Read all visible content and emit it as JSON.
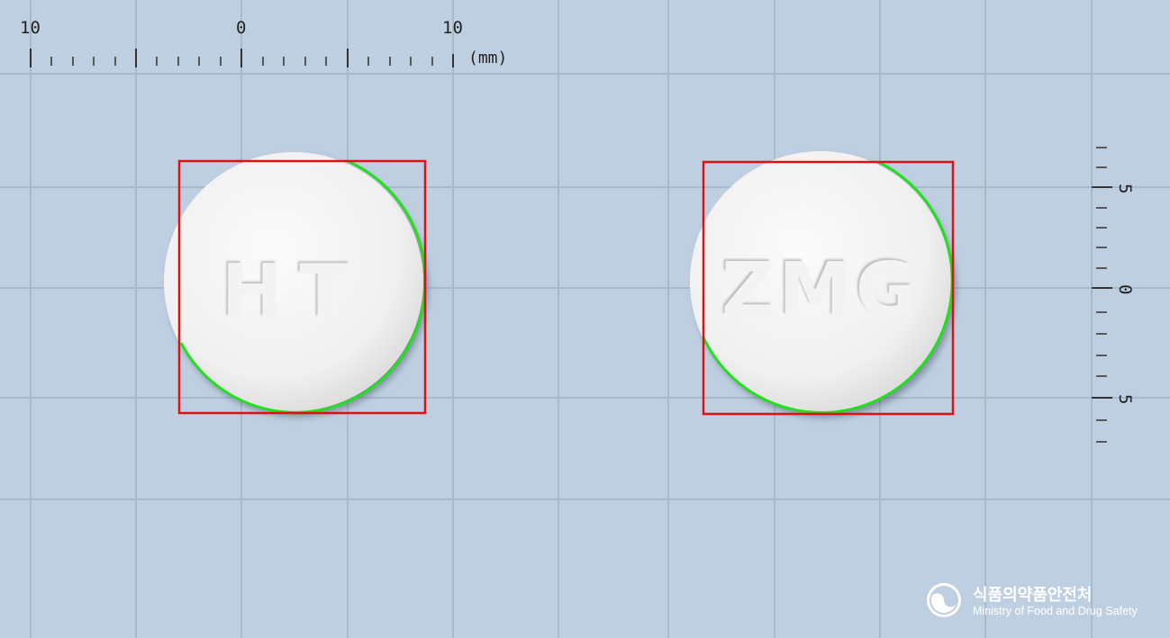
{
  "ruler": {
    "top_labels": [
      "10",
      "0",
      "10"
    ],
    "unit": "(mm)",
    "right_labels": [
      "5",
      "0",
      "5"
    ]
  },
  "pills": [
    {
      "imprint": "HT",
      "color": "#f4f4f4"
    },
    {
      "imprint": "ZMG",
      "color": "#f4f4f4"
    }
  ],
  "overlay_colors": {
    "bounding_box": "#e01010",
    "contour": "#22e01c",
    "grid": "#a9b9cc",
    "background": "#bfcfe2"
  },
  "logo": {
    "name_kr": "식품의약품안전처",
    "name_en": "Ministry of Food and Drug Safety",
    "icon": "government-emblem-icon"
  }
}
